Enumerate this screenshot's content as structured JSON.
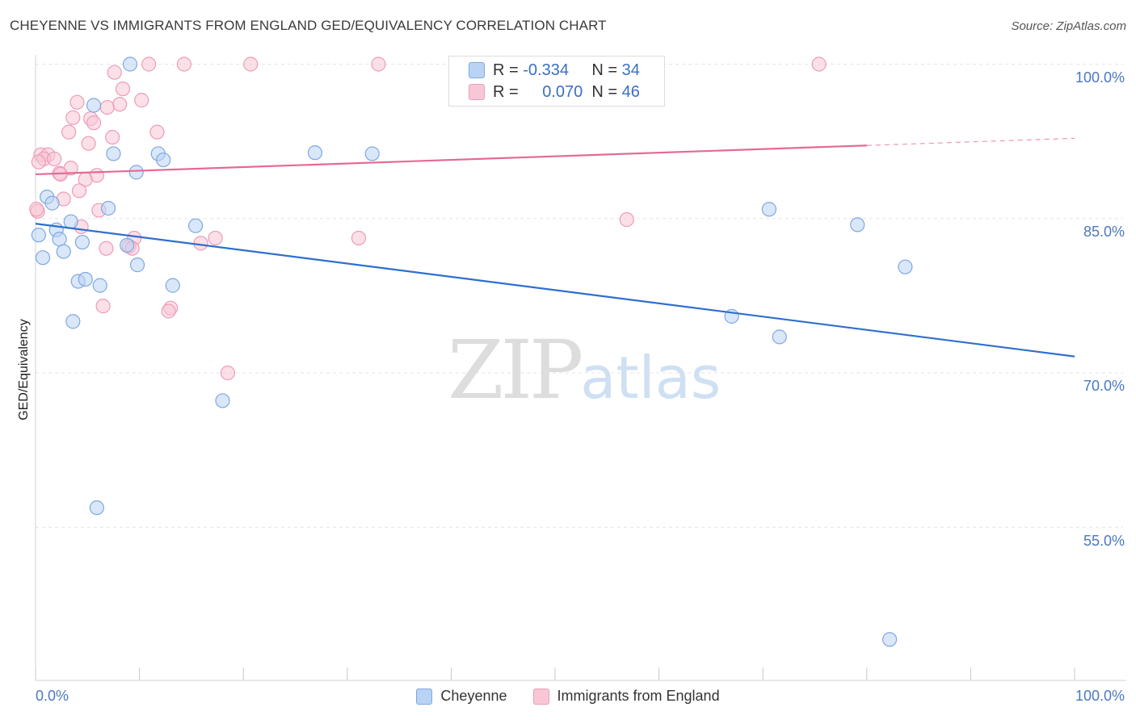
{
  "title": "CHEYENNE VS IMMIGRANTS FROM ENGLAND GED/EQUIVALENCY CORRELATION CHART",
  "source": "Source: ZipAtlas.com",
  "watermark": {
    "part1": "ZIP",
    "part2": "atlas"
  },
  "legend": {
    "r_label": "R =",
    "n_label": "N =",
    "rows": [
      {
        "name": "Cheyenne",
        "r": "-0.334",
        "n": "34"
      },
      {
        "name": "Immigrants from England",
        "r": "0.070",
        "n": "46"
      }
    ]
  },
  "colors": {
    "cheyenne_fill": "#b9d3f4",
    "cheyenne_stroke": "#7fa8e0",
    "cheyenne_line": "#2d6fce",
    "england_fill": "#f8c7d6",
    "england_stroke": "#ee9cb6",
    "england_line": "#e46a92",
    "tick_text": "#4a78c2",
    "grid": "#e4e4e4"
  },
  "chart_data": {
    "type": "scatter",
    "ylabel": "GED/Equivalency",
    "xlim": [
      0,
      100
    ],
    "ylim": [
      42,
      102
    ],
    "x_tick_labels": [
      "0.0%",
      "100.0%"
    ],
    "y_ticks": [
      {
        "value": 100,
        "label": "100.0%"
      },
      {
        "value": 85,
        "label": "85.0%"
      },
      {
        "value": 70,
        "label": "70.0%"
      },
      {
        "value": 55,
        "label": "55.0%"
      }
    ],
    "grid": true,
    "legend_position": "top-center",
    "series": [
      {
        "name": "Cheyenne",
        "trend": {
          "x": [
            0,
            100
          ],
          "y": [
            84.5,
            71.6
          ]
        },
        "points": [
          [
            9.1,
            100.0
          ],
          [
            5.6,
            96.0
          ],
          [
            7.5,
            91.3
          ],
          [
            11.8,
            91.3
          ],
          [
            12.3,
            90.7
          ],
          [
            26.9,
            91.4
          ],
          [
            32.4,
            91.3
          ],
          [
            9.7,
            89.5
          ],
          [
            1.1,
            87.1
          ],
          [
            1.6,
            86.5
          ],
          [
            7.0,
            86.0
          ],
          [
            3.4,
            84.7
          ],
          [
            15.4,
            84.3
          ],
          [
            70.6,
            85.9
          ],
          [
            79.1,
            84.4
          ],
          [
            2.0,
            83.9
          ],
          [
            0.3,
            83.4
          ],
          [
            2.3,
            83.0
          ],
          [
            4.5,
            82.7
          ],
          [
            8.8,
            82.4
          ],
          [
            2.7,
            81.8
          ],
          [
            0.7,
            81.2
          ],
          [
            9.8,
            80.5
          ],
          [
            83.7,
            80.3
          ],
          [
            4.1,
            78.9
          ],
          [
            4.8,
            79.1
          ],
          [
            6.2,
            78.5
          ],
          [
            13.2,
            78.5
          ],
          [
            67.0,
            75.5
          ],
          [
            3.6,
            75.0
          ],
          [
            71.6,
            73.5
          ],
          [
            18.0,
            67.3
          ],
          [
            5.9,
            56.9
          ],
          [
            82.2,
            44.1
          ]
        ]
      },
      {
        "name": "Immigrants from England",
        "trend": {
          "x": [
            0,
            80
          ],
          "y": [
            89.3,
            92.1
          ],
          "dashed_to_x": 100,
          "dashed_to_y": 92.8
        },
        "points": [
          [
            10.9,
            100.0
          ],
          [
            14.3,
            100.0
          ],
          [
            20.7,
            100.0
          ],
          [
            33.0,
            100.0
          ],
          [
            75.4,
            100.0
          ],
          [
            7.6,
            99.2
          ],
          [
            8.4,
            97.6
          ],
          [
            4.0,
            96.3
          ],
          [
            10.2,
            96.5
          ],
          [
            8.1,
            96.1
          ],
          [
            6.9,
            95.8
          ],
          [
            3.6,
            94.8
          ],
          [
            5.3,
            94.7
          ],
          [
            5.6,
            94.3
          ],
          [
            3.2,
            93.4
          ],
          [
            11.7,
            93.4
          ],
          [
            7.4,
            92.9
          ],
          [
            5.1,
            92.3
          ],
          [
            0.5,
            91.2
          ],
          [
            1.2,
            91.2
          ],
          [
            0.8,
            90.8
          ],
          [
            1.8,
            90.8
          ],
          [
            0.3,
            90.5
          ],
          [
            3.4,
            89.9
          ],
          [
            2.3,
            89.4
          ],
          [
            2.4,
            89.3
          ],
          [
            5.9,
            89.2
          ],
          [
            4.8,
            88.8
          ],
          [
            4.2,
            87.7
          ],
          [
            2.7,
            86.9
          ],
          [
            0.2,
            85.7
          ],
          [
            6.1,
            85.8
          ],
          [
            56.9,
            84.9
          ],
          [
            4.4,
            84.2
          ],
          [
            9.5,
            83.1
          ],
          [
            17.3,
            83.1
          ],
          [
            31.1,
            83.1
          ],
          [
            15.9,
            82.6
          ],
          [
            9.0,
            82.3
          ],
          [
            6.8,
            82.1
          ],
          [
            9.3,
            82.1
          ],
          [
            6.5,
            76.5
          ],
          [
            13.0,
            76.3
          ],
          [
            12.8,
            76.0
          ],
          [
            18.5,
            70.0
          ],
          [
            0.1,
            85.9
          ]
        ]
      }
    ]
  }
}
